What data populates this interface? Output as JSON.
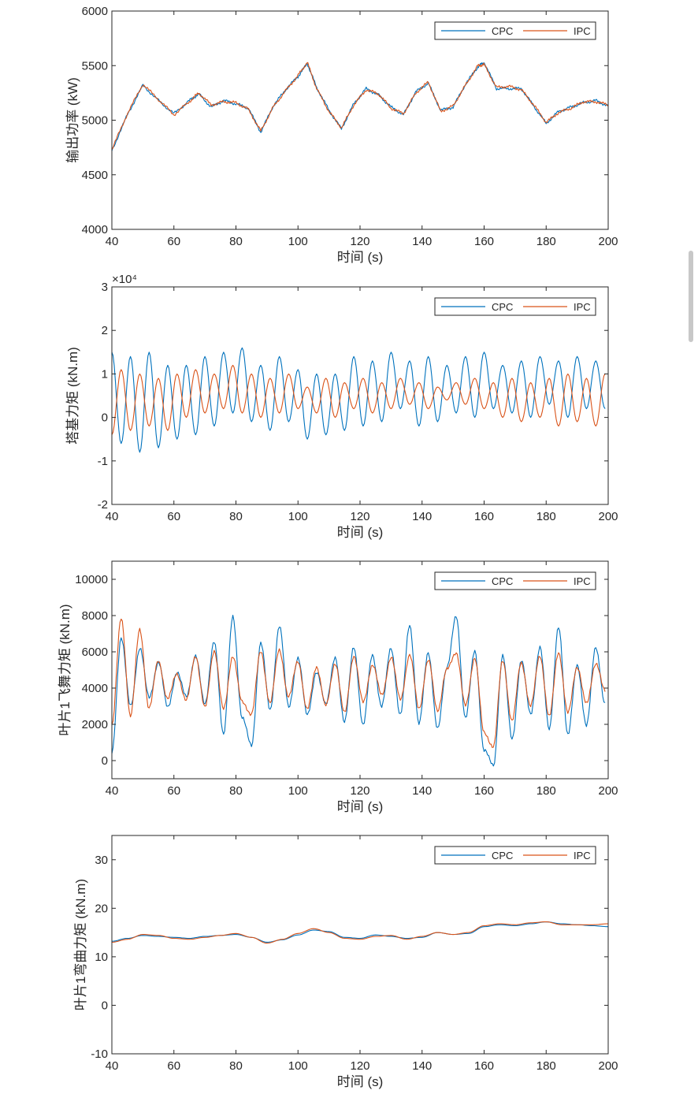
{
  "colors": {
    "cpc": "#0072BD",
    "ipc": "#D95319",
    "axis": "#262626",
    "background": "#ffffff"
  },
  "legend": {
    "cpc_label": "CPC",
    "ipc_label": "IPC",
    "location": "top-right"
  },
  "chart_data": [
    {
      "type": "line",
      "title": "",
      "xlabel": "时间 (s)",
      "ylabel": "输出功率 (kW)",
      "xlim": [
        40,
        200
      ],
      "ylim": [
        4000,
        6000
      ],
      "xticks": [
        40,
        60,
        80,
        100,
        120,
        140,
        160,
        180,
        200
      ],
      "yticks": [
        4000,
        4500,
        5000,
        5500,
        6000
      ],
      "exponent_label": "",
      "x": [
        40,
        45,
        50,
        55,
        60,
        65,
        68,
        72,
        76,
        80,
        84,
        88,
        92,
        96,
        100,
        103,
        106,
        110,
        114,
        118,
        122,
        126,
        130,
        134,
        138,
        142,
        146,
        150,
        154,
        158,
        160,
        164,
        168,
        172,
        176,
        180,
        184,
        188,
        192,
        196,
        200
      ],
      "series": [
        {
          "name": "CPC",
          "values": [
            4720,
            5050,
            5320,
            5180,
            5060,
            5180,
            5240,
            5120,
            5180,
            5150,
            5110,
            4890,
            5130,
            5280,
            5400,
            5520,
            5300,
            5090,
            4920,
            5150,
            5290,
            5230,
            5120,
            5050,
            5260,
            5340,
            5090,
            5120,
            5330,
            5490,
            5530,
            5290,
            5290,
            5290,
            5130,
            4970,
            5080,
            5120,
            5160,
            5180,
            5130
          ]
        },
        {
          "name": "IPC",
          "values": [
            4730,
            5060,
            5330,
            5190,
            5050,
            5170,
            5250,
            5140,
            5170,
            5160,
            5100,
            4900,
            5120,
            5270,
            5410,
            5530,
            5290,
            5080,
            4930,
            5140,
            5280,
            5240,
            5110,
            5060,
            5250,
            5350,
            5080,
            5130,
            5320,
            5500,
            5510,
            5300,
            5310,
            5280,
            5140,
            4980,
            5070,
            5110,
            5170,
            5170,
            5140
          ]
        }
      ]
    },
    {
      "type": "line",
      "title": "",
      "xlabel": "时间 (s)",
      "ylabel": "塔基力矩 (kN.m)",
      "xlim": [
        40,
        200
      ],
      "ylim": [
        -2,
        3
      ],
      "xticks": [
        40,
        60,
        80,
        100,
        120,
        140,
        160,
        180,
        200
      ],
      "yticks": [
        -2,
        -1,
        0,
        1,
        2,
        3
      ],
      "exponent_label": "×10⁴",
      "x": [
        40,
        43,
        46,
        49,
        52,
        55,
        58,
        61,
        64,
        67,
        70,
        73,
        76,
        79,
        82,
        85,
        88,
        91,
        94,
        97,
        100,
        103,
        106,
        109,
        112,
        115,
        118,
        121,
        124,
        127,
        130,
        133,
        136,
        139,
        142,
        145,
        148,
        151,
        154,
        157,
        160,
        163,
        166,
        169,
        172,
        175,
        178,
        181,
        184,
        187,
        190,
        193,
        196,
        199
      ],
      "series": [
        {
          "name": "CPC",
          "values": [
            1.5,
            -0.6,
            1.4,
            -0.8,
            1.5,
            -0.7,
            1.2,
            -0.5,
            1.2,
            -0.4,
            1.4,
            -0.2,
            1.5,
            0.1,
            1.6,
            -0.1,
            1.2,
            -0.3,
            1.4,
            -0.1,
            1.1,
            -0.5,
            1.0,
            -0.4,
            1.0,
            -0.3,
            1.4,
            -0.2,
            1.3,
            -0.1,
            1.5,
            0.2,
            1.3,
            -0.2,
            1.4,
            -0.1,
            1.2,
            0.1,
            1.4,
            0.0,
            1.5,
            0.2,
            1.2,
            0.1,
            1.3,
            0.0,
            1.4,
            0.3,
            1.3,
            0.0,
            1.4,
            0.2,
            1.3,
            0.2
          ]
        },
        {
          "name": "IPC",
          "values": [
            -0.4,
            1.1,
            -0.3,
            1.0,
            -0.2,
            0.9,
            -0.3,
            1.0,
            0.0,
            1.1,
            0.1,
            1.0,
            0.2,
            1.2,
            0.1,
            1.0,
            0.0,
            0.9,
            0.1,
            1.0,
            0.2,
            0.7,
            0.1,
            0.9,
            0.0,
            0.8,
            0.2,
            0.9,
            0.1,
            0.8,
            0.2,
            0.9,
            0.3,
            0.8,
            0.2,
            0.7,
            0.4,
            0.8,
            0.3,
            0.9,
            0.2,
            0.8,
            0.0,
            0.9,
            -0.1,
            0.8,
            0.0,
            0.9,
            -0.2,
            1.0,
            -0.1,
            0.9,
            -0.2,
            1.0
          ]
        }
      ]
    },
    {
      "type": "line",
      "title": "",
      "xlabel": "时间 (s)",
      "ylabel": "叶片1飞舞力矩 (kN.m)",
      "xlim": [
        40,
        200
      ],
      "ylim": [
        -1000,
        11000
      ],
      "xticks": [
        40,
        60,
        80,
        100,
        120,
        140,
        160,
        180,
        200
      ],
      "yticks": [
        0,
        2000,
        4000,
        6000,
        8000,
        10000
      ],
      "exponent_label": "",
      "x": [
        40,
        43,
        46,
        49,
        52,
        55,
        58,
        61,
        64,
        67,
        70,
        73,
        76,
        79,
        82,
        85,
        88,
        91,
        94,
        97,
        100,
        103,
        106,
        109,
        112,
        115,
        118,
        121,
        124,
        127,
        130,
        133,
        136,
        139,
        142,
        145,
        148,
        151,
        154,
        157,
        160,
        163,
        166,
        169,
        172,
        175,
        178,
        181,
        184,
        187,
        190,
        193,
        196,
        199
      ],
      "series": [
        {
          "name": "CPC",
          "values": [
            400,
            6800,
            3000,
            6200,
            3500,
            5400,
            3000,
            4800,
            3600,
            5700,
            3200,
            6500,
            1500,
            7900,
            2400,
            800,
            6500,
            2800,
            7400,
            3000,
            5600,
            2600,
            4800,
            3200,
            5600,
            2200,
            6200,
            2000,
            5800,
            3000,
            6200,
            2500,
            7500,
            2000,
            6000,
            1700,
            5200,
            7900,
            2400,
            6000,
            600,
            -300,
            5800,
            1200,
            5500,
            2600,
            6200,
            1800,
            7300,
            1500,
            5200,
            2000,
            6200,
            3200
          ]
        },
        {
          "name": "IPC",
          "values": [
            2000,
            7800,
            2500,
            7200,
            2900,
            5500,
            3400,
            4800,
            3300,
            5800,
            2900,
            6100,
            2800,
            5800,
            3200,
            2600,
            6000,
            3200,
            6100,
            3500,
            5500,
            2800,
            5200,
            3000,
            5400,
            2600,
            5800,
            3200,
            5300,
            3600,
            5700,
            3400,
            5800,
            2900,
            5500,
            2800,
            5000,
            6000,
            3000,
            5700,
            1500,
            800,
            5500,
            2200,
            5400,
            3000,
            5800,
            2400,
            6000,
            2600,
            5200,
            3100,
            5400,
            3800
          ]
        }
      ]
    },
    {
      "type": "line",
      "title": "",
      "xlabel": "时间 (s)",
      "ylabel": "叶片1弯曲力矩 (kN.m)",
      "xlim": [
        40,
        200
      ],
      "ylim": [
        -10,
        35
      ],
      "xticks": [
        40,
        60,
        80,
        100,
        120,
        140,
        160,
        180,
        200
      ],
      "yticks": [
        -10,
        0,
        10,
        20,
        30
      ],
      "exponent_label": "",
      "x": [
        40,
        45,
        50,
        55,
        60,
        65,
        70,
        75,
        80,
        85,
        90,
        95,
        100,
        105,
        110,
        115,
        120,
        125,
        130,
        135,
        140,
        145,
        150,
        155,
        160,
        165,
        170,
        175,
        180,
        185,
        190,
        195,
        200
      ],
      "series": [
        {
          "name": "CPC",
          "values": [
            13.2,
            13.8,
            14.4,
            14.2,
            14.0,
            13.8,
            14.2,
            14.4,
            14.6,
            14.0,
            13.0,
            13.5,
            14.5,
            15.5,
            15.2,
            14.0,
            13.8,
            14.5,
            14.2,
            13.8,
            14.0,
            15.0,
            14.6,
            14.8,
            16.2,
            16.6,
            16.4,
            16.8,
            17.2,
            16.8,
            16.6,
            16.4,
            16.2
          ]
        },
        {
          "name": "IPC",
          "values": [
            13.0,
            13.6,
            14.6,
            14.4,
            13.8,
            13.6,
            14.0,
            14.4,
            14.8,
            14.0,
            12.8,
            13.6,
            14.8,
            15.8,
            15.0,
            13.8,
            13.6,
            14.2,
            14.4,
            13.6,
            14.2,
            15.0,
            14.6,
            15.0,
            16.4,
            16.8,
            16.6,
            17.0,
            17.2,
            16.6,
            16.6,
            16.6,
            16.8
          ]
        }
      ]
    }
  ]
}
